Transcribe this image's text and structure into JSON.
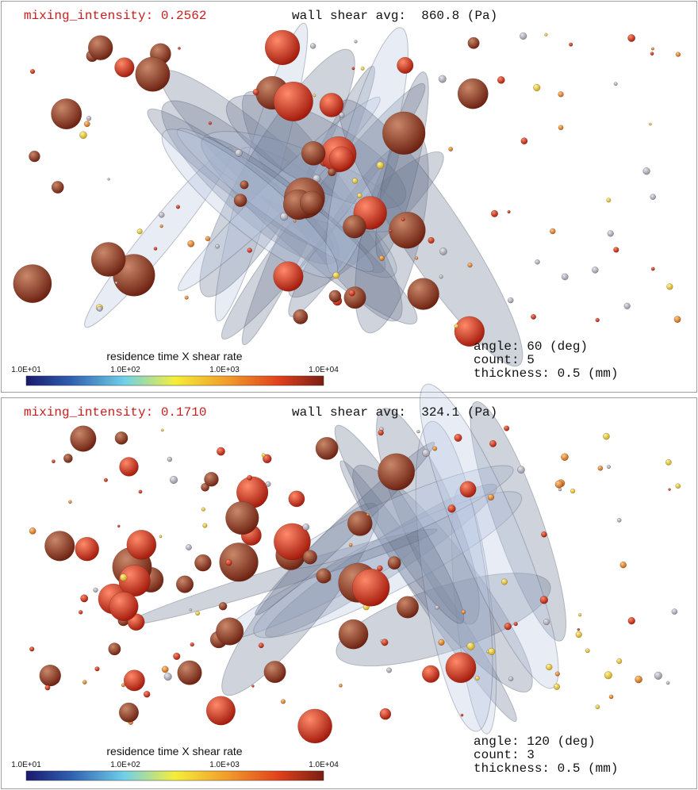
{
  "panels": [
    {
      "mixing": "mixing_intensity: 0.2562",
      "wall_shear": "wall shear avg:  860.8 (Pa)",
      "colorbar": {
        "title": "residence time X shear rate",
        "ticks": [
          "1.0E+01",
          "1.0E+02",
          "1.0E+03",
          "1.0E+04"
        ]
      },
      "params": [
        "angle: 60 (deg)",
        "count: 5",
        "thickness: 0.5 (mm)"
      ]
    },
    {
      "mixing": "mixing_intensity: 0.1710",
      "wall_shear": "wall shear avg:  324.1 (Pa)",
      "colorbar": {
        "title": "residence time X shear rate",
        "ticks": [
          "1.0E+01",
          "1.0E+02",
          "1.0E+03",
          "1.0E+04"
        ]
      },
      "params": [
        "angle: 120 (deg)",
        "count: 3",
        "thickness: 0.5 (mm)"
      ]
    }
  ]
}
